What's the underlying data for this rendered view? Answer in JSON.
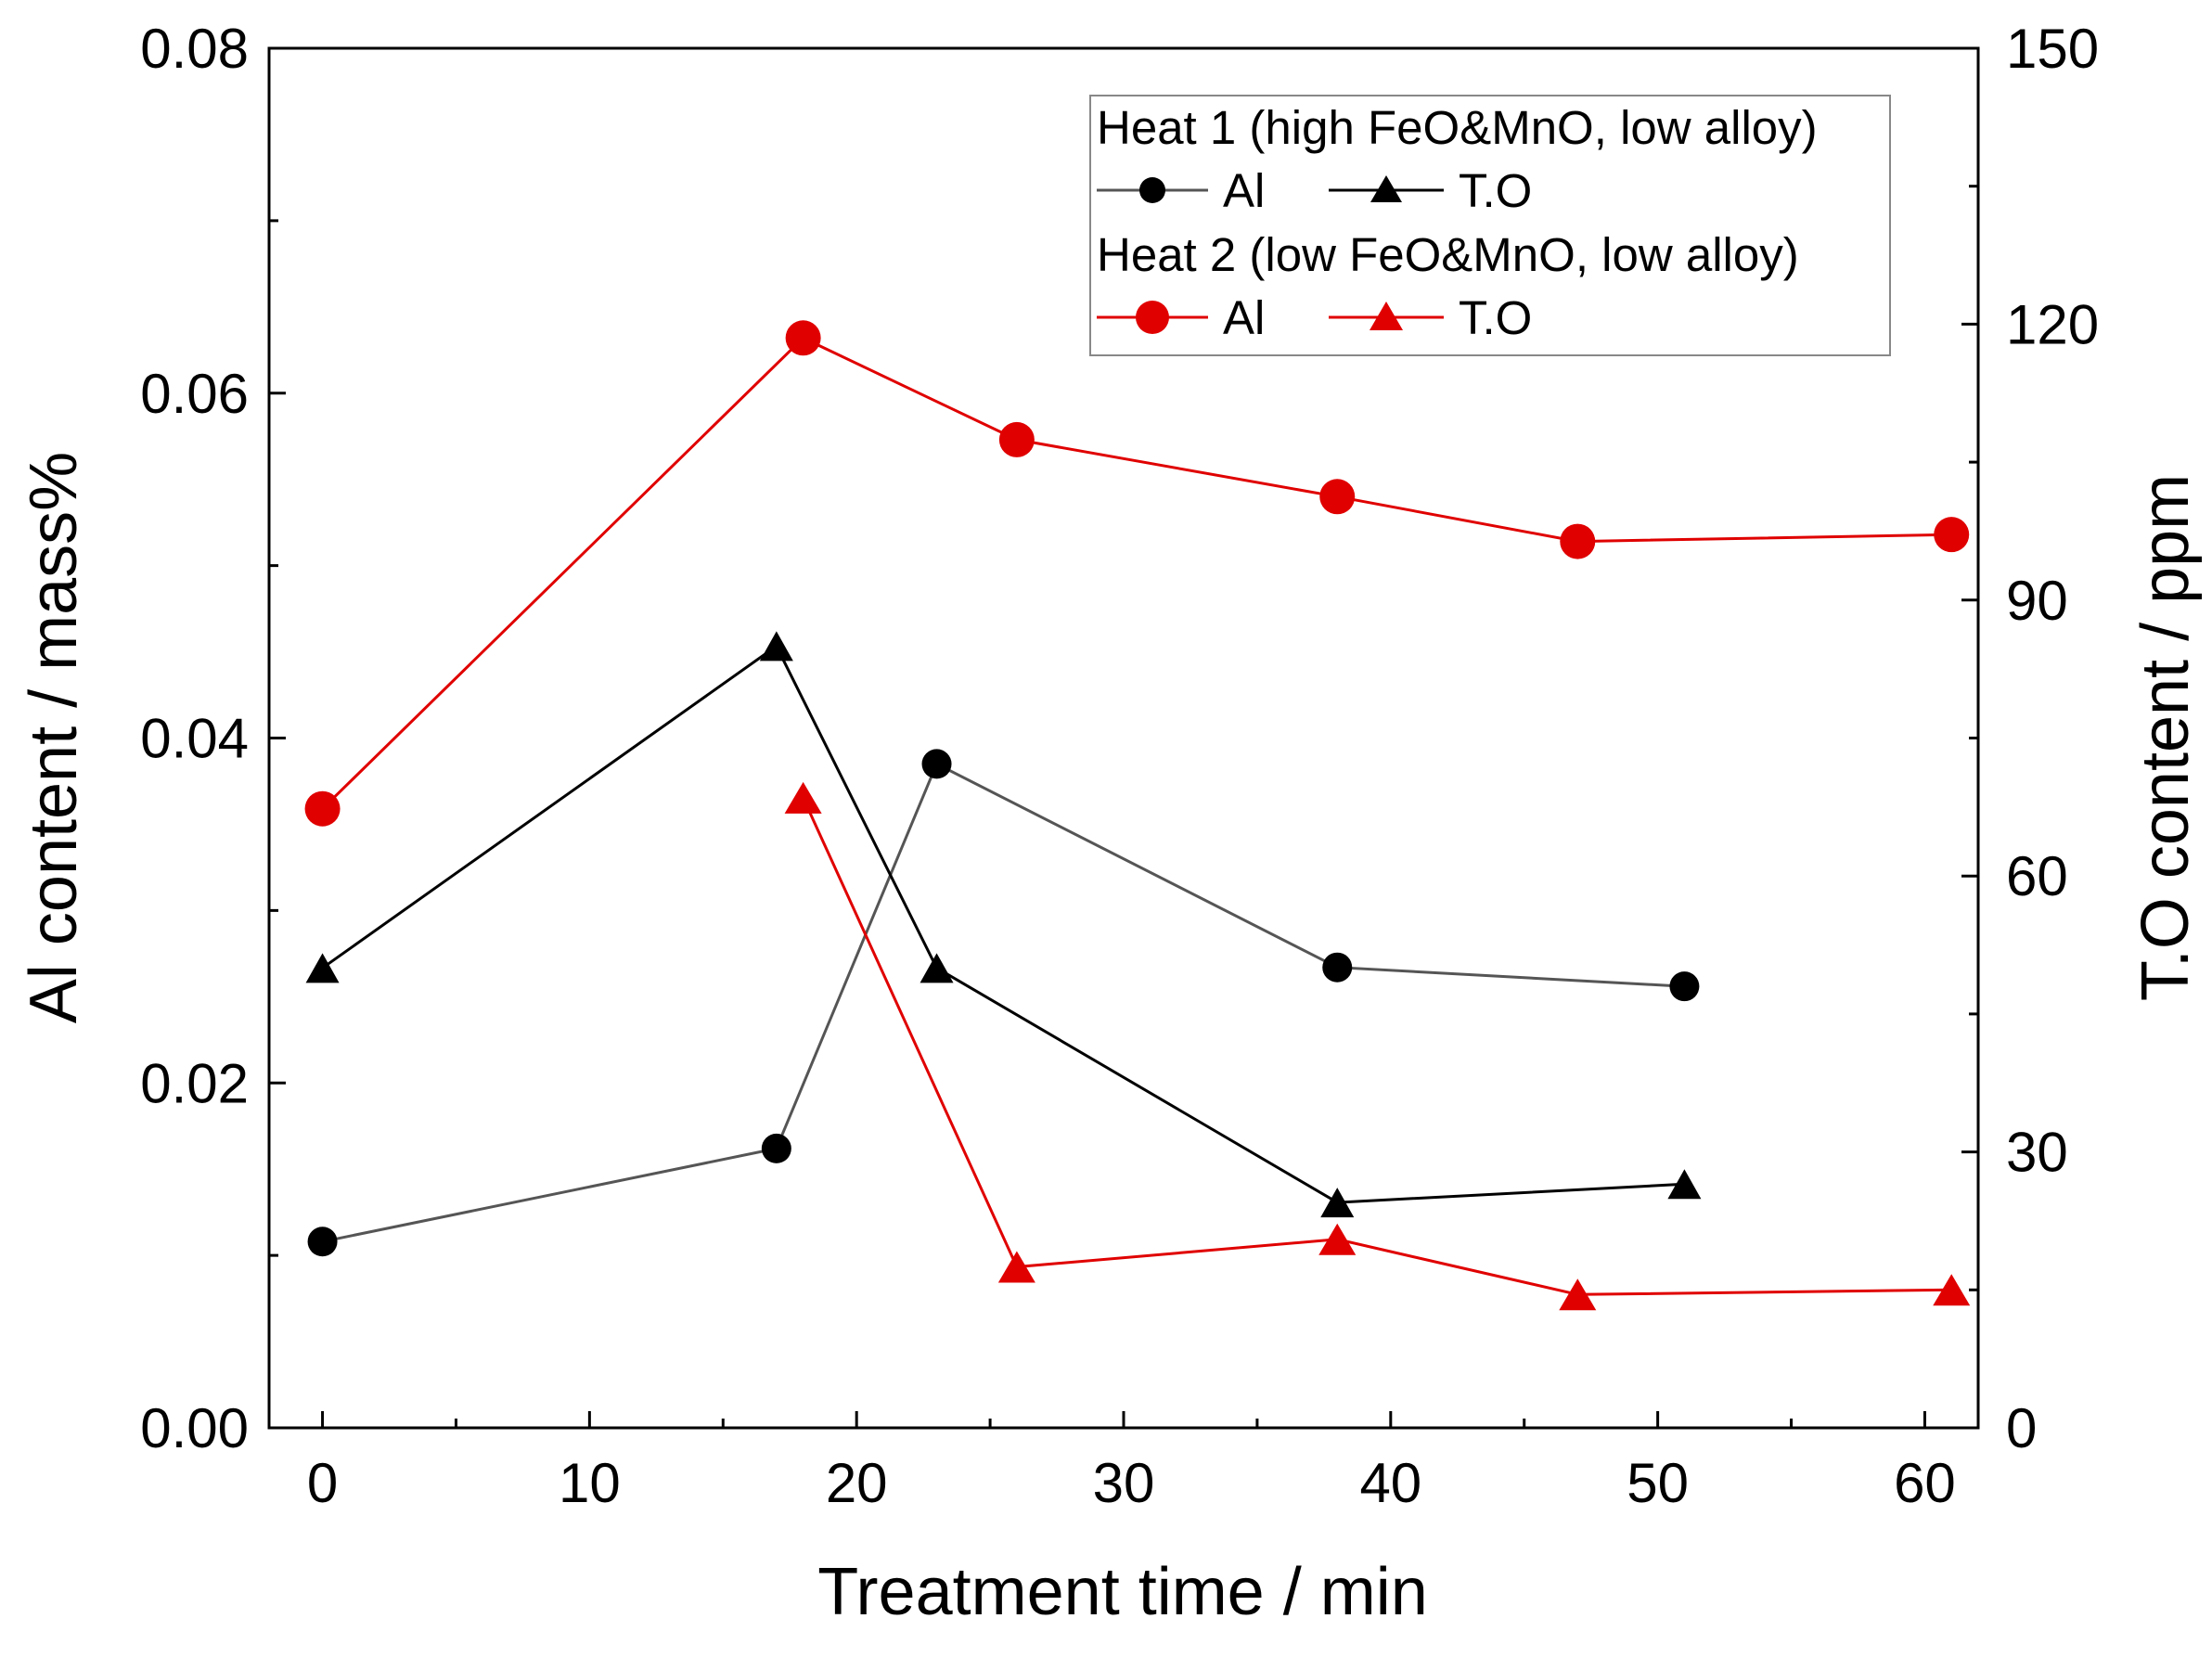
{
  "chart_data": {
    "type": "line",
    "title": "",
    "xlabel": "Treatment time / min",
    "ylabel_left": "Al content / mass%",
    "ylabel_right": "T.O content / ppm",
    "xlim": [
      -2,
      62
    ],
    "ylim_left": [
      0,
      0.08
    ],
    "ylim_right": [
      0,
      150
    ],
    "x_ticks": [
      0,
      10,
      20,
      30,
      40,
      50,
      60
    ],
    "x_tick_labels": [
      "0",
      "10",
      "20",
      "30",
      "40",
      "50",
      "60"
    ],
    "y_left_ticks": [
      0,
      0.02,
      0.04,
      0.06,
      0.08
    ],
    "y_left_tick_labels": [
      "0.00",
      "0.02",
      "0.04",
      "0.06",
      "0.08"
    ],
    "y_right_ticks": [
      0,
      30,
      60,
      90,
      120,
      150
    ],
    "y_right_tick_labels": [
      "0",
      "30",
      "60",
      "90",
      "120",
      "150"
    ],
    "grid": false,
    "legend_position": "top-right",
    "legend": {
      "groups": [
        {
          "heading": "Heat 1 (high FeO&MnO, low alloy)",
          "entries": [
            "Al",
            "T.O"
          ],
          "color": "#000000"
        },
        {
          "heading": "Heat 2 (low FeO&MnO, low alloy)",
          "entries": [
            "Al",
            "T.O"
          ],
          "color": "#e00000"
        }
      ]
    },
    "series": [
      {
        "name": "Heat 1 Al",
        "axis": "left",
        "marker": "circle",
        "color": "#000000",
        "line_color": "#555555",
        "x": [
          0,
          17,
          23,
          38,
          51
        ],
        "values": [
          0.0108,
          0.0162,
          0.0385,
          0.0267,
          0.0256
        ]
      },
      {
        "name": "Heat 1 T.O",
        "axis": "right",
        "marker": "triangle",
        "color": "#000000",
        "line_color": "#000000",
        "x": [
          0,
          17,
          23,
          38,
          51
        ],
        "values": [
          50,
          85,
          50,
          24.5,
          26.5
        ]
      },
      {
        "name": "Heat 2 Al",
        "axis": "left",
        "marker": "circle",
        "color": "#e00000",
        "line_color": "#e00000",
        "x": [
          0,
          18,
          26,
          38,
          47,
          61
        ],
        "values": [
          0.0359,
          0.0632,
          0.0573,
          0.054,
          0.0514,
          0.0518
        ]
      },
      {
        "name": "Heat 2 T.O",
        "axis": "right",
        "marker": "triangle",
        "color": "#e00000",
        "line_color": "#e00000",
        "x": [
          18,
          26,
          38,
          47,
          61
        ],
        "values": [
          68.5,
          17.5,
          20.5,
          14.5,
          15
        ]
      }
    ]
  }
}
